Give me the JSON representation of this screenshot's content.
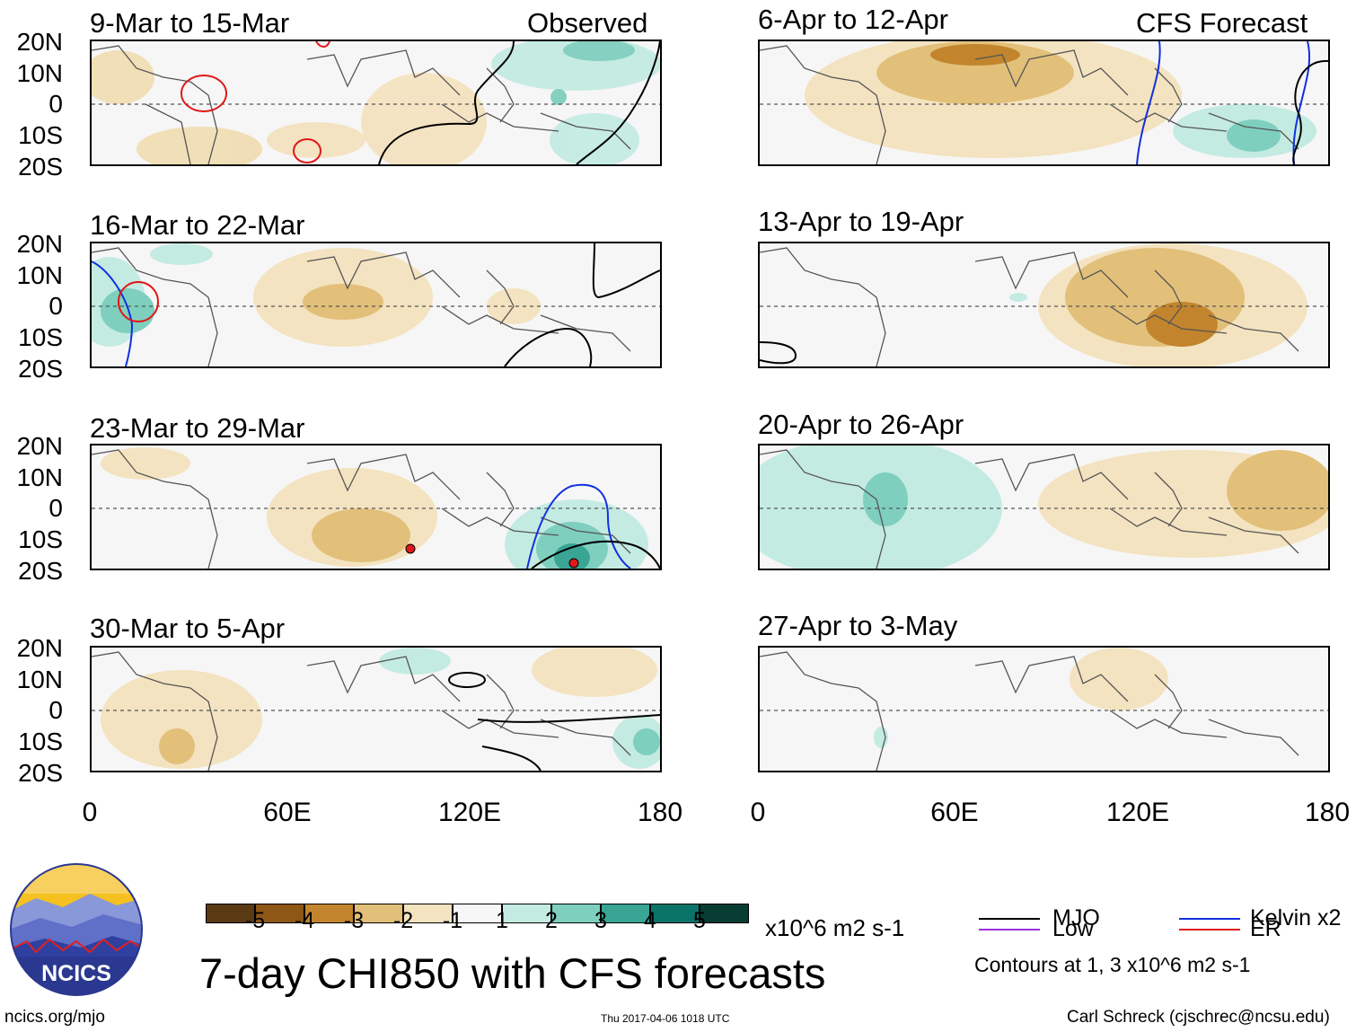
{
  "figure": {
    "title": "7-day CHI850 with CFS forecasts",
    "observed_label": "Observed",
    "forecast_label": "CFS Forecast",
    "units_label": "x10^6 m2 s-1",
    "footer_left": "ncics.org/mjo",
    "footer_center": "Thu 2017-04-06 1018 UTC",
    "footer_right": "Carl Schreck (cjschrec@ncsu.edu)",
    "logo_text": "NCICS"
  },
  "map_axes": {
    "y_ticks": [
      "20N",
      "10N",
      "0",
      "10S",
      "20S"
    ],
    "x_ticks": [
      "0",
      "60E",
      "120E",
      "180"
    ]
  },
  "panels_observed": [
    {
      "title": "9-Mar to 15-Mar"
    },
    {
      "title": "16-Mar to 22-Mar"
    },
    {
      "title": "23-Mar to 29-Mar"
    },
    {
      "title": "30-Mar to 5-Apr"
    }
  ],
  "panels_forecast": [
    {
      "title": "6-Apr to 12-Apr"
    },
    {
      "title": "13-Apr to 19-Apr"
    },
    {
      "title": "20-Apr to 26-Apr"
    },
    {
      "title": "27-Apr to 3-May"
    }
  ],
  "colorbar": {
    "labels": [
      "-5",
      "-4",
      "-3",
      "-2",
      "-1",
      "1",
      "2",
      "3",
      "4",
      "5"
    ],
    "colors": [
      "#5a3a12",
      "#8e5716",
      "#c2852e",
      "#e2c07a",
      "#f4e3c0",
      "#f6f6f6",
      "#c4ebe2",
      "#7fcfbf",
      "#3aa595",
      "#0a7468",
      "#073d33"
    ]
  },
  "legend": {
    "items": [
      {
        "label": "MJO",
        "color": "#000000"
      },
      {
        "label": "Kelvin x2",
        "color": "#1030e0"
      },
      {
        "label": "Low",
        "color": "#9a30e0"
      },
      {
        "label": "ER",
        "color": "#e01818"
      }
    ],
    "note": "Contours at 1, 3 x10^6 m2 s-1"
  }
}
